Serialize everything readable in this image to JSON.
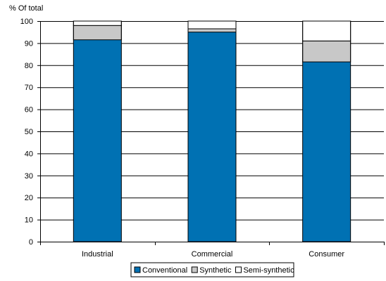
{
  "chart_data": {
    "type": "bar",
    "stacked": true,
    "ylabel": "% Of total",
    "ylim": [
      0,
      100
    ],
    "yticks": [
      0,
      10,
      20,
      30,
      40,
      50,
      60,
      70,
      80,
      90,
      100
    ],
    "grid": true,
    "legend_position": "bottom-center",
    "categories": [
      "Industrial",
      "Commercial",
      "Consumer"
    ],
    "series": [
      {
        "name": "Conventional",
        "color": "#0071b3",
        "values": [
          91.5,
          95,
          81.5
        ]
      },
      {
        "name": "Synthetic",
        "color": "#c8c8c8",
        "values": [
          6.5,
          1.5,
          9.5
        ]
      },
      {
        "name": "Semi-synthetic",
        "color": "#ffffff",
        "values": [
          2,
          3.5,
          9
        ]
      }
    ]
  }
}
